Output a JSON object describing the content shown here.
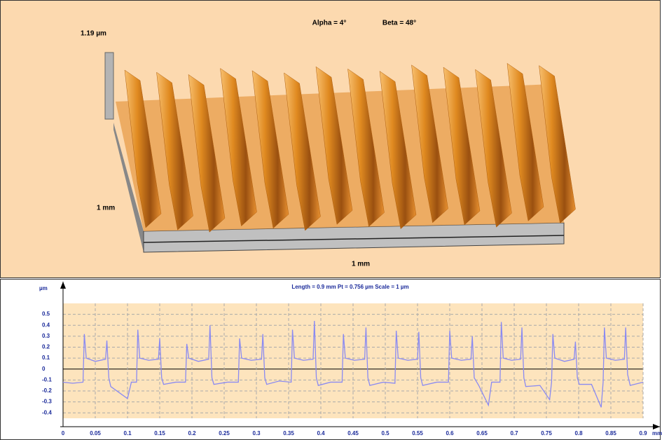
{
  "surface_view": {
    "alpha_label": "Alpha = 4°",
    "beta_label": "Beta = 48°",
    "z_label": "1.19 µm",
    "y_label": "1 mm",
    "x_label": "1 mm"
  },
  "chart_data": {
    "type": "line",
    "title": "Length = 0.9 mm  Pt = 0.756 µm  Scale = 1 µm",
    "y_axis_label": "µm",
    "x_axis_label": "mm",
    "xlim": [
      0,
      0.9
    ],
    "ylim": [
      -0.45,
      0.6
    ],
    "xticks": [
      0,
      0.05,
      0.1,
      0.15,
      0.2,
      0.25,
      0.3,
      0.35,
      0.4,
      0.45,
      0.5,
      0.55,
      0.6,
      0.65,
      0.7,
      0.75,
      0.8,
      0.85,
      0.9
    ],
    "yticks": [
      -0.4,
      -0.3,
      -0.2,
      -0.1,
      0,
      0.1,
      0.2,
      0.3,
      0.4,
      0.5
    ],
    "grid": true,
    "x": [
      0,
      0.015,
      0.031,
      0.033,
      0.036,
      0.05,
      0.066,
      0.068,
      0.071,
      0.074,
      0.1,
      0.106,
      0.114,
      0.116,
      0.119,
      0.133,
      0.148,
      0.15,
      0.153,
      0.156,
      0.175,
      0.19,
      0.192,
      0.195,
      0.21,
      0.226,
      0.228,
      0.231,
      0.234,
      0.255,
      0.272,
      0.274,
      0.277,
      0.292,
      0.308,
      0.31,
      0.313,
      0.316,
      0.335,
      0.354,
      0.356,
      0.359,
      0.373,
      0.388,
      0.39,
      0.393,
      0.396,
      0.415,
      0.433,
      0.435,
      0.438,
      0.452,
      0.468,
      0.47,
      0.473,
      0.476,
      0.497,
      0.515,
      0.517,
      0.52,
      0.535,
      0.55,
      0.552,
      0.555,
      0.558,
      0.58,
      0.598,
      0.6,
      0.603,
      0.618,
      0.633,
      0.635,
      0.638,
      0.645,
      0.66,
      0.665,
      0.678,
      0.68,
      0.683,
      0.696,
      0.71,
      0.712,
      0.715,
      0.718,
      0.74,
      0.755,
      0.758,
      0.76,
      0.763,
      0.778,
      0.793,
      0.795,
      0.798,
      0.801,
      0.82,
      0.835,
      0.838,
      0.84,
      0.843,
      0.857,
      0.871,
      0.873,
      0.876,
      0.88,
      0.9
    ],
    "series": [
      {
        "color": "#8a8af2",
        "values": [
          -0.12,
          -0.13,
          -0.12,
          0.32,
          0.1,
          0.07,
          0.09,
          0.26,
          -0.08,
          -0.16,
          -0.27,
          -0.12,
          -0.12,
          0.36,
          0.1,
          0.08,
          0.09,
          0.28,
          -0.08,
          -0.14,
          -0.12,
          -0.12,
          0.23,
          0.1,
          0.07,
          0.09,
          0.4,
          -0.08,
          -0.14,
          -0.12,
          -0.12,
          0.28,
          0.1,
          0.08,
          0.09,
          0.32,
          -0.08,
          -0.14,
          -0.11,
          -0.12,
          0.36,
          0.1,
          0.08,
          0.09,
          0.44,
          -0.08,
          -0.15,
          -0.12,
          -0.12,
          0.32,
          0.1,
          0.08,
          0.09,
          0.38,
          -0.08,
          -0.15,
          -0.12,
          -0.13,
          0.35,
          0.1,
          0.08,
          0.09,
          0.34,
          -0.08,
          -0.15,
          -0.12,
          -0.12,
          0.35,
          0.1,
          0.08,
          0.09,
          0.3,
          -0.08,
          -0.15,
          -0.33,
          -0.12,
          -0.12,
          0.43,
          0.1,
          0.08,
          0.09,
          0.38,
          -0.08,
          -0.16,
          -0.15,
          -0.28,
          -0.12,
          0.32,
          0.1,
          0.07,
          0.09,
          0.25,
          -0.08,
          -0.14,
          -0.14,
          -0.35,
          -0.12,
          0.38,
          0.1,
          0.08,
          0.09,
          0.38,
          -0.05,
          -0.15,
          -0.12
        ]
      }
    ]
  }
}
